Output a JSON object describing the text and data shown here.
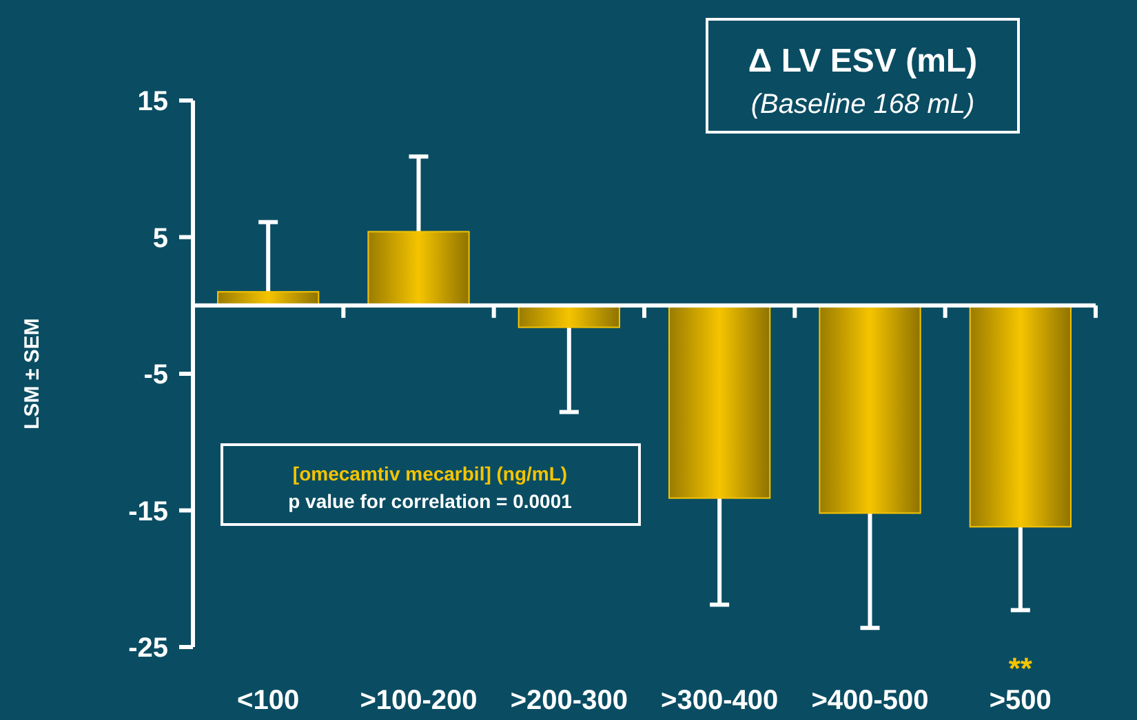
{
  "chart_data": {
    "type": "bar",
    "title": "Δ LV ESV (mL)",
    "subtitle": "(Baseline 168 mL)",
    "ylabel": "LSM ± SEM",
    "categories": [
      "<100",
      ">100-200",
      ">200-300",
      ">300-400",
      ">400-500",
      ">500"
    ],
    "values": [
      1.0,
      5.4,
      -1.6,
      -14.1,
      -15.2,
      -16.2
    ],
    "errors": [
      [
        1.0,
        6.1
      ],
      [
        5.4,
        10.9
      ],
      [
        -7.8,
        -1.6
      ],
      [
        -21.9,
        -14.1
      ],
      [
        -23.6,
        -15.2
      ],
      [
        -22.3,
        -16.2
      ]
    ],
    "color": "#f5c400",
    "ylim": [
      -25,
      15
    ],
    "yticks": [
      -25,
      -15,
      -5,
      5,
      15
    ],
    "grid": false,
    "annotations": [
      "[omecamtiv mecarbil]  (ng/mL)",
      "p value for correlation = 0.0001",
      "**"
    ]
  }
}
